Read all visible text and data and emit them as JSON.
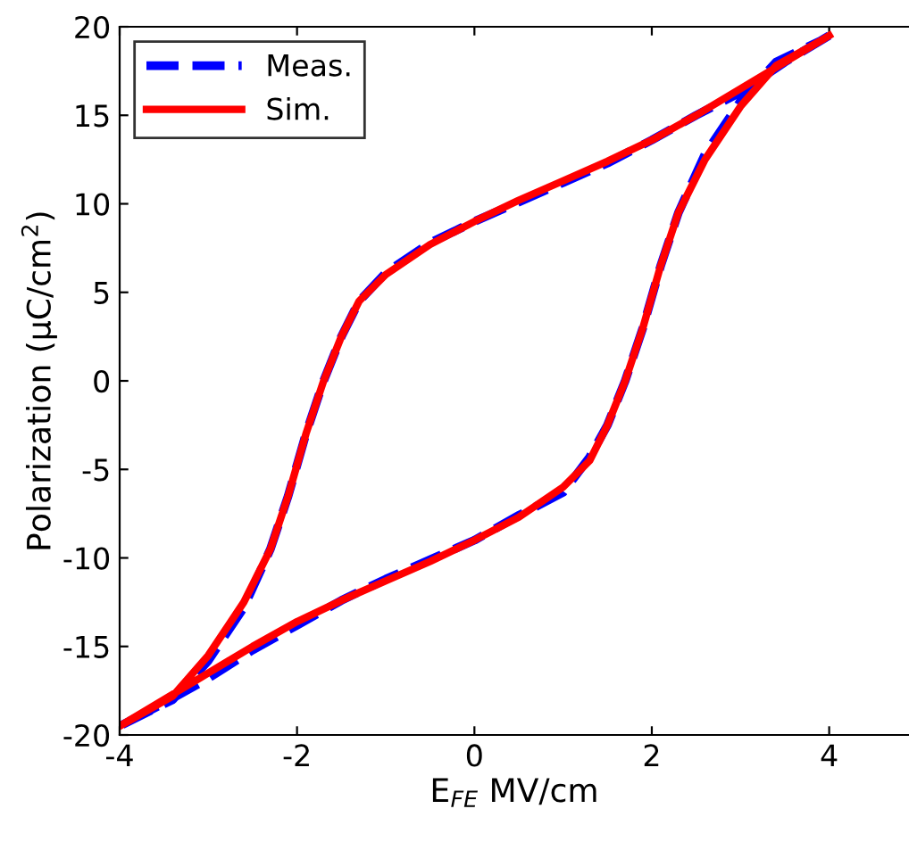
{
  "chart_data": {
    "type": "line",
    "xlabel": "E$_{FE}$ MV/cm",
    "ylabel": "Polarization (μC/cm$^{2}$)",
    "xlim": [
      -4,
      4.9
    ],
    "ylim": [
      -20,
      20
    ],
    "xticks": [
      -4,
      -2,
      0,
      2,
      4
    ],
    "yticks": [
      -20,
      -15,
      -10,
      -5,
      0,
      5,
      10,
      15,
      20
    ],
    "grid": false,
    "legend": "top left",
    "series": [
      {
        "name": "Meas.",
        "color": "#0000ff",
        "line_style": "dashed",
        "x": [
          4,
          3.5,
          3,
          2.5,
          2,
          1.5,
          1,
          0.5,
          0,
          -0.5,
          -1,
          -1.3,
          -1.5,
          -1.7,
          -1.9,
          -2.1,
          -2.3,
          -2.6,
          -3,
          -3.4,
          -4,
          -3.5,
          -3,
          -2.5,
          -2,
          -1.5,
          -1,
          -0.5,
          0,
          0.5,
          1,
          1.3,
          1.5,
          1.7,
          1.9,
          2.1,
          2.3,
          2.6,
          3,
          3.4,
          3.9
        ],
        "values": [
          19.5,
          18,
          16.3,
          15,
          13.6,
          12.3,
          11.2,
          10.1,
          9,
          7.8,
          6.1,
          4.5,
          2.5,
          0,
          -3,
          -6.5,
          -9.5,
          -12.8,
          -15.8,
          -18,
          -19.5,
          -18.2,
          -16.8,
          -15.2,
          -13.8,
          -12.4,
          -11.2,
          -10.1,
          -9,
          -7.6,
          -6.3,
          -4.3,
          -2.5,
          0,
          3,
          6.5,
          9.5,
          12.8,
          15.8,
          18,
          19.2
        ]
      },
      {
        "name": "Sim.",
        "color": "#ff0000",
        "line_style": "solid",
        "x": [
          4,
          3.5,
          3,
          2.5,
          2,
          1.5,
          1,
          0.5,
          0,
          -0.5,
          -1,
          -1.3,
          -1.5,
          -1.7,
          -1.9,
          -2.1,
          -2.3,
          -2.6,
          -3,
          -3.4,
          -4,
          -3.5,
          -3,
          -2.5,
          -2,
          -1.5,
          -1,
          -0.5,
          0,
          0.5,
          1,
          1.3,
          1.5,
          1.7,
          1.9,
          2.1,
          2.3,
          2.6,
          3,
          3.4,
          3.9
        ],
        "values": [
          19.5,
          18,
          16.5,
          15,
          13.6,
          12.4,
          11.3,
          10.2,
          9,
          7.7,
          6,
          4.5,
          2.5,
          0,
          -3,
          -6.5,
          -9.5,
          -12.5,
          -15.5,
          -17.8,
          -19.5,
          -18,
          -16.5,
          -15,
          -13.6,
          -12.4,
          -11.3,
          -10.2,
          -9,
          -7.7,
          -6,
          -4.5,
          -2.5,
          0,
          3,
          6.5,
          9.5,
          12.5,
          15.5,
          17.8,
          19.2
        ]
      }
    ]
  }
}
